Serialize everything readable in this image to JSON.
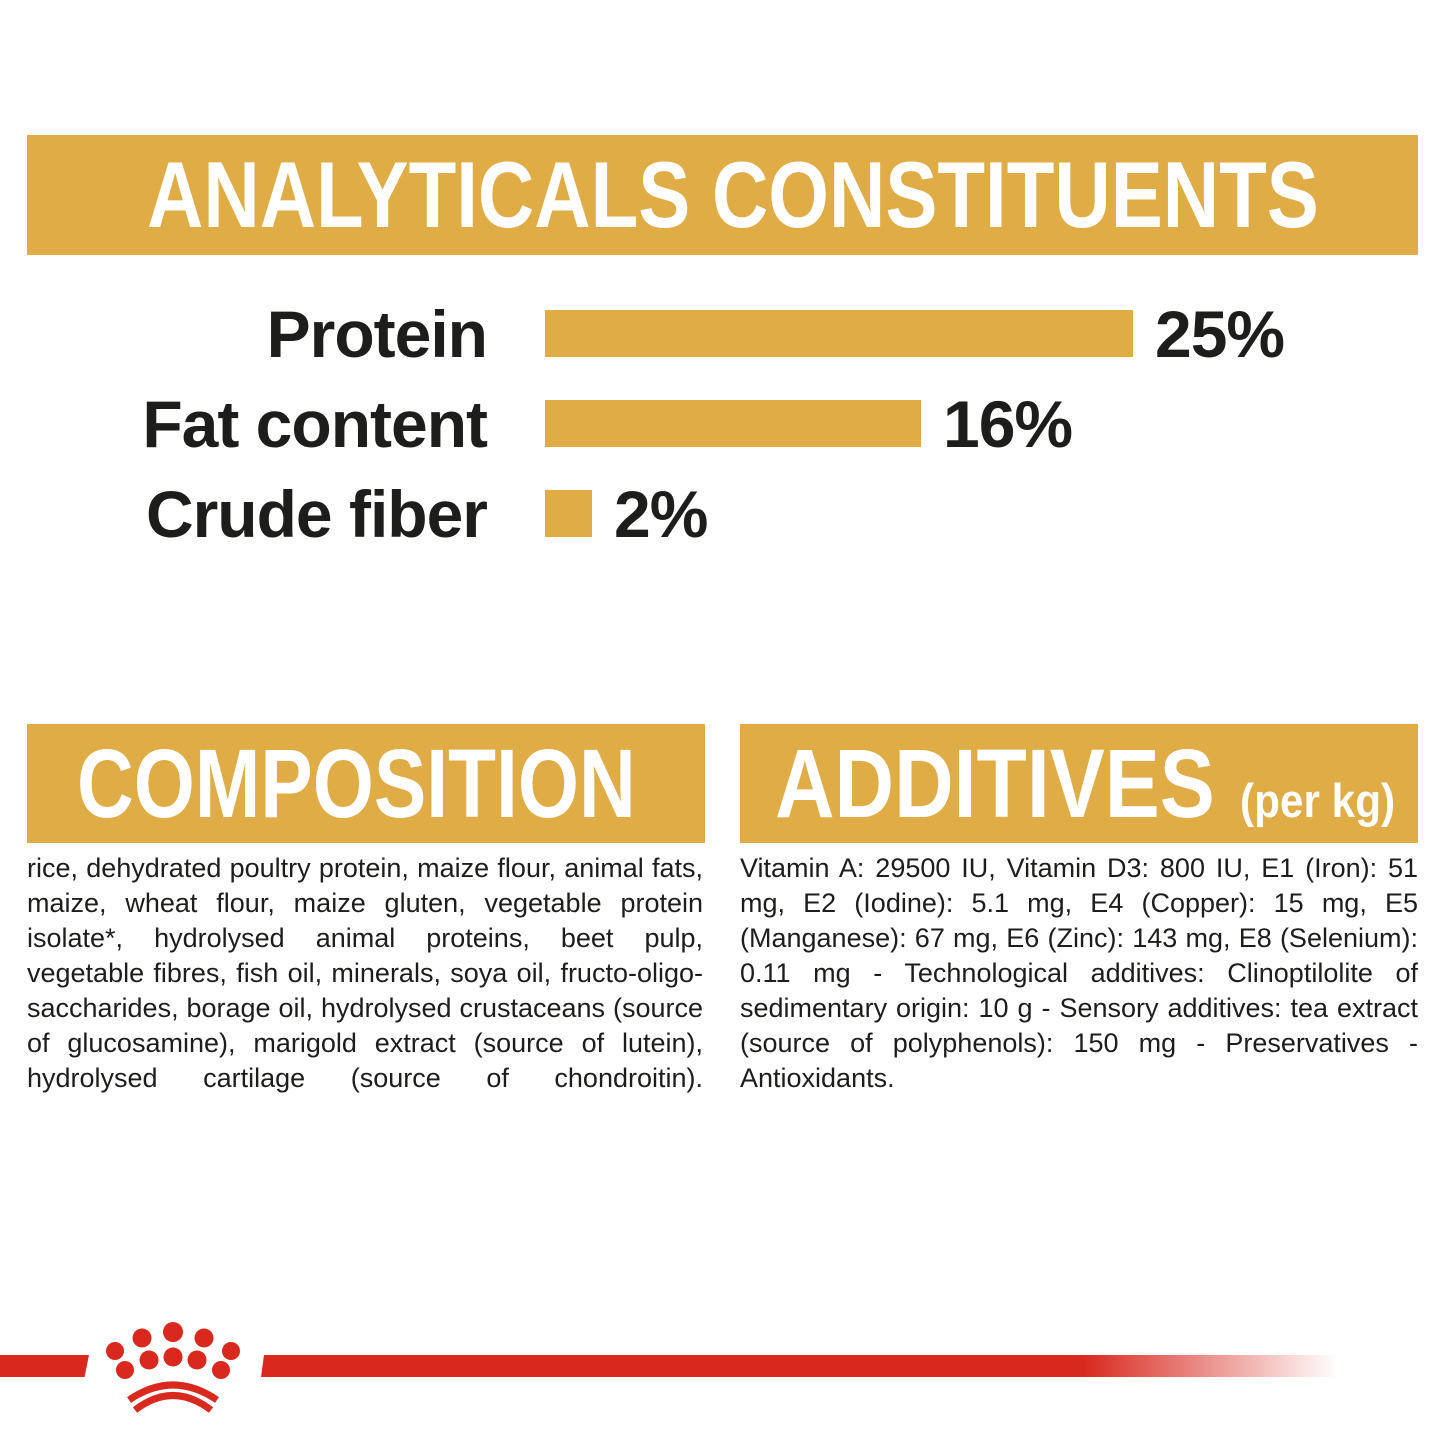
{
  "colors": {
    "gold": "#DFAC45",
    "red": "#D9291F",
    "ink": "#1D1D1B"
  },
  "header": {
    "title": "ANALYTICALS CONSTITUENTS"
  },
  "chart_data": {
    "type": "bar",
    "orientation": "horizontal",
    "title": "ANALYTICALS CONSTITUENTS",
    "categories": [
      "Protein",
      "Fat content",
      "Crude fiber"
    ],
    "values": [
      25,
      16,
      2
    ],
    "value_labels": [
      "25%",
      "16%",
      "2%"
    ],
    "unit": "%",
    "xlim": [
      0,
      25
    ],
    "bar_color": "#DFAC45",
    "grid": false,
    "legend": false
  },
  "composition": {
    "title": "COMPOSITION",
    "body": "rice, dehydrated poultry protein, maize flour, animal fats, maize, wheat flour, maize gluten, vegetable protein isolate*, hydrolysed animal proteins, beet pulp, vegetable fibres, fish oil, minerals, soya oil, fructo-oligo-saccharides, borage oil, hydrolysed crustaceans (source of glucosamine), marigold extract (source of lutein), hydrolysed cartilage (source of chondroitin)."
  },
  "additives": {
    "title": "ADDITIVES",
    "subtitle": "(per kg)",
    "body": "Vitamin A: 29500 IU, Vitamin D3: 800 IU, E1 (Iron): 51 mg, E2 (Iodine): 5.1 mg, E4 (Copper): 15 mg, E5 (Manganese): 67 mg, E6 (Zinc): 143 mg, E8 (Selenium): 0.11 mg - Technological additives: Clinoptilolite of sedimentary origin: 10 g - Sensory additives: tea extract (source of polyphenols): 150 mg - Preservatives - Antioxidants."
  },
  "footer": {
    "brand_icon": "royal-canin-crown"
  }
}
